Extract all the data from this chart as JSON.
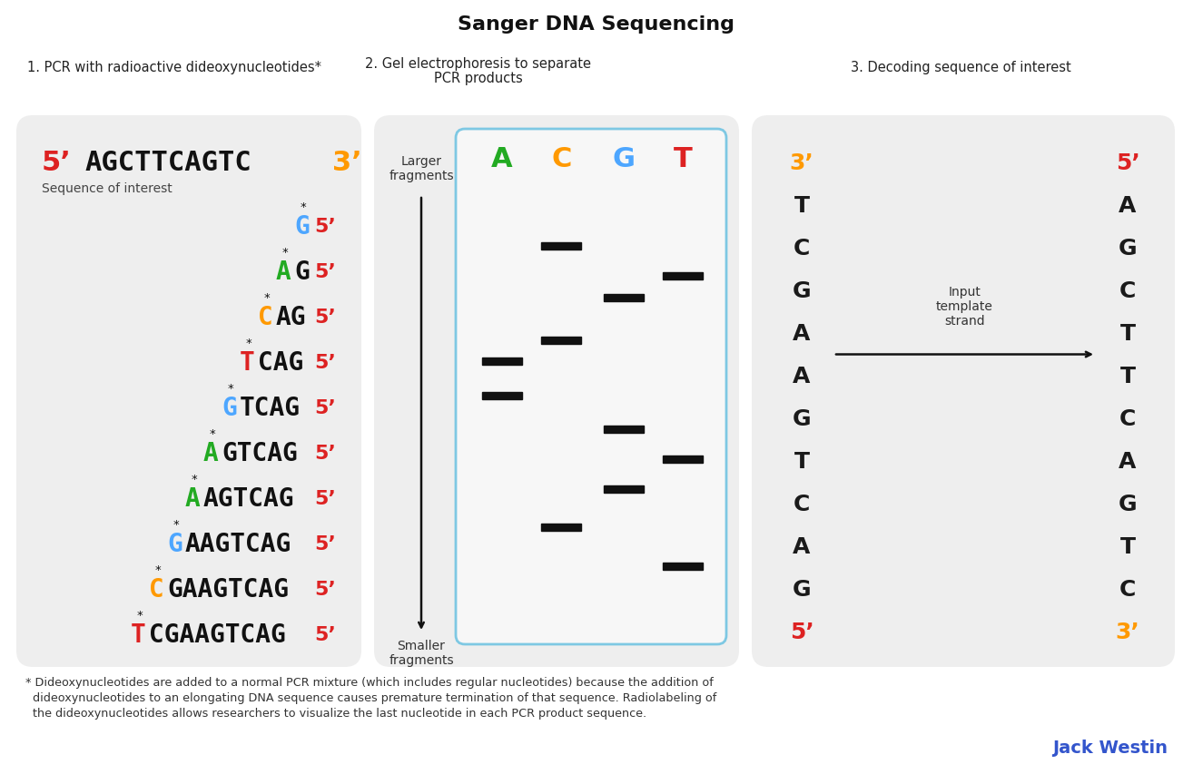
{
  "title": "Sanger DNA Sequencing",
  "step1_label": "1. PCR with radioactive dideoxynucleotides*",
  "step2_label_line1": "2. Gel electrophoresis to separate",
  "step2_label_line2": "PCR products",
  "step3_label": "3. Decoding sequence of interest",
  "seq_header_5": "5’",
  "seq_header_bases": "AGCTTCAGTC",
  "seq_header_3": "3’",
  "seq_of_interest": "Sequence of interest",
  "pcr_rows": [
    {
      "starred": "G",
      "sc": "#4da6ff",
      "rest": ""
    },
    {
      "starred": "A",
      "sc": "#22aa22",
      "rest": "G"
    },
    {
      "starred": "C",
      "sc": "#ff9900",
      "rest": "AG"
    },
    {
      "starred": "T",
      "sc": "#dd2222",
      "rest": "CAG"
    },
    {
      "starred": "G",
      "sc": "#4da6ff",
      "rest": "TCAG"
    },
    {
      "starred": "A",
      "sc": "#22aa22",
      "rest": "GTCAG"
    },
    {
      "starred": "A",
      "sc": "#22aa22",
      "rest": "AGTCAG"
    },
    {
      "starred": "G",
      "sc": "#4da6ff",
      "rest": "AAGTCAG"
    },
    {
      "starred": "C",
      "sc": "#ff9900",
      "rest": "GAAGTCAG"
    },
    {
      "starred": "T",
      "sc": "#dd2222",
      "rest": "CGAAGTCAG"
    }
  ],
  "gel_lanes": [
    "A",
    "C",
    "G",
    "T"
  ],
  "gel_lane_colors": [
    "#22aa22",
    "#ff9900",
    "#4da6ff",
    "#dd2222"
  ],
  "gel_bands": {
    "A": [
      0.48,
      0.4
    ],
    "C": [
      0.79,
      0.35,
      0.13
    ],
    "G": [
      0.7,
      0.56,
      0.25
    ],
    "T": [
      0.88,
      0.63,
      0.2
    ]
  },
  "larger_fragments": "Larger\nfragments",
  "smaller_fragments": "Smaller\nfragments",
  "tpl_left": [
    "3’",
    "T",
    "C",
    "G",
    "A",
    "A",
    "G",
    "T",
    "C",
    "A",
    "G",
    "5’"
  ],
  "tpl_left_c": [
    "#ff9900",
    "#1a1a1a",
    "#1a1a1a",
    "#1a1a1a",
    "#1a1a1a",
    "#1a1a1a",
    "#1a1a1a",
    "#1a1a1a",
    "#1a1a1a",
    "#1a1a1a",
    "#1a1a1a",
    "#dd2222"
  ],
  "tpl_right": [
    "5’",
    "A",
    "G",
    "C",
    "T",
    "T",
    "C",
    "A",
    "G",
    "T",
    "C",
    "3’"
  ],
  "tpl_right_c": [
    "#dd2222",
    "#1a1a1a",
    "#1a1a1a",
    "#1a1a1a",
    "#1a1a1a",
    "#1a1a1a",
    "#1a1a1a",
    "#1a1a1a",
    "#1a1a1a",
    "#1a1a1a",
    "#1a1a1a",
    "#ff9900"
  ],
  "input_lbl": "Input\ntemplate\nstrand",
  "footnote_line1": "* Dideoxynucleotides are added to a normal PCR mixture (which includes regular nucleotides) because the addition of",
  "footnote_line2": "  dideoxynucleotides to an elongating DNA sequence causes premature termination of that sequence. Radiolabeling of",
  "footnote_line3": "  the dideoxynucleotides allows researchers to visualize the last nucleotide in each PCR product sequence.",
  "credit": "Jack Westin",
  "credit_color": "#3355cc",
  "panel_bg": "#eeeeee",
  "fig_bg": "#ffffff"
}
